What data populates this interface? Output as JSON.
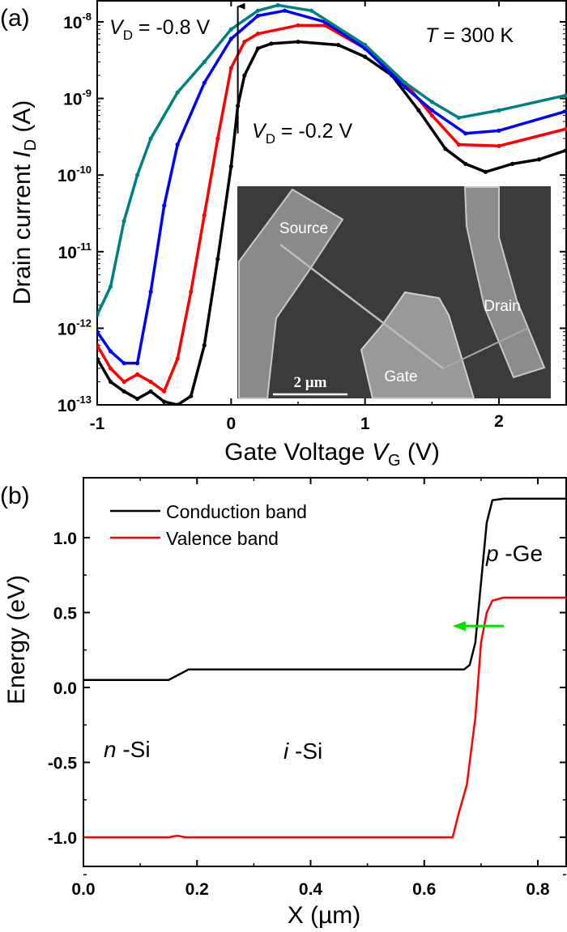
{
  "chart_data": [
    {
      "type": "scatter",
      "panel_label": "(a)",
      "xlabel_parts": [
        {
          "text": "Gate Voltage "
        },
        {
          "text": "V",
          "style": "italic"
        },
        {
          "text": "G",
          "style": "sub"
        },
        {
          "text": " (V)"
        }
      ],
      "ylabel_parts": [
        {
          "text": "Drain current "
        },
        {
          "text": "I",
          "style": "italic"
        },
        {
          "text": "D",
          "style": "sub"
        },
        {
          "text": " (A)"
        }
      ],
      "xlim": [
        -1,
        2.5
      ],
      "ylim": [
        1e-13,
        1.9e-08
      ],
      "yscale": "log",
      "x_ticks": [
        {
          "value": -1,
          "label": "-1"
        },
        {
          "value": 0,
          "label": "0"
        },
        {
          "value": 1,
          "label": "1"
        },
        {
          "value": 2,
          "label": "2"
        }
      ],
      "y_ticks": [
        {
          "value": 1e-08,
          "base": "10",
          "exp": "-8"
        },
        {
          "value": 1e-09,
          "base": "10",
          "exp": "-9"
        },
        {
          "value": 1e-10,
          "base": "10",
          "exp": "-10"
        },
        {
          "value": 1e-11,
          "base": "10",
          "exp": "-11"
        },
        {
          "value": 1e-12,
          "base": "10",
          "exp": "-12"
        },
        {
          "value": 1e-13,
          "base": "10",
          "exp": "-13"
        }
      ],
      "grid": false,
      "series": [
        {
          "color": "#000000",
          "points": [
            [
              -1,
              4e-13
            ],
            [
              -0.9,
              2e-13
            ],
            [
              -0.8,
              1.5e-13
            ],
            [
              -0.7,
              1.2e-13
            ],
            [
              -0.6,
              1.5e-13
            ],
            [
              -0.5,
              1.1e-13
            ],
            [
              -0.4,
              1e-13
            ],
            [
              -0.3,
              1.3e-13
            ],
            [
              -0.2,
              6e-13
            ],
            [
              -0.1,
              8e-12
            ],
            [
              0,
              1.3e-10
            ],
            [
              0.05,
              8e-10
            ],
            [
              0.1,
              2e-09
            ],
            [
              0.2,
              4.5e-09
            ],
            [
              0.3,
              5.2e-09
            ],
            [
              0.5,
              5.5e-09
            ],
            [
              0.8,
              5e-09
            ],
            [
              1.0,
              3.5e-09
            ],
            [
              1.2,
              2e-09
            ],
            [
              1.4,
              7e-10
            ],
            [
              1.6,
              2.2e-10
            ],
            [
              1.75,
              1.4e-10
            ],
            [
              1.9,
              1.1e-10
            ],
            [
              2.1,
              1.4e-10
            ],
            [
              2.3,
              1.6e-10
            ],
            [
              2.5,
              2.1e-10
            ]
          ]
        },
        {
          "color": "#ff0000",
          "points": [
            [
              -1,
              6e-13
            ],
            [
              -0.9,
              3e-13
            ],
            [
              -0.8,
              2e-13
            ],
            [
              -0.7,
              2.5e-13
            ],
            [
              -0.6,
              2e-13
            ],
            [
              -0.5,
              1.5e-13
            ],
            [
              -0.4,
              4e-13
            ],
            [
              -0.3,
              3e-12
            ],
            [
              -0.2,
              3e-11
            ],
            [
              -0.1,
              3e-10
            ],
            [
              0,
              2.5e-09
            ],
            [
              0.1,
              5.5e-09
            ],
            [
              0.2,
              7e-09
            ],
            [
              0.5,
              9e-09
            ],
            [
              0.7,
              9e-09
            ],
            [
              1.0,
              4.5e-09
            ],
            [
              1.3,
              1.6e-09
            ],
            [
              1.5,
              6e-10
            ],
            [
              1.7,
              2.5e-10
            ],
            [
              2.0,
              2.4e-10
            ],
            [
              2.5,
              4e-10
            ]
          ]
        },
        {
          "color": "#0000ff",
          "points": [
            [
              -1,
              9e-13
            ],
            [
              -0.9,
              5e-13
            ],
            [
              -0.8,
              3.5e-13
            ],
            [
              -0.7,
              3.5e-13
            ],
            [
              -0.6,
              3e-12
            ],
            [
              -0.5,
              4e-11
            ],
            [
              -0.4,
              2.5e-10
            ],
            [
              -0.2,
              1.6e-09
            ],
            [
              0,
              6e-09
            ],
            [
              0.2,
              1.2e-08
            ],
            [
              0.4,
              1.4e-08
            ],
            [
              0.7,
              1e-08
            ],
            [
              1.0,
              4.5e-09
            ],
            [
              1.3,
              1.4e-09
            ],
            [
              1.5,
              7e-10
            ],
            [
              1.75,
              3.5e-10
            ],
            [
              2.0,
              3.8e-10
            ],
            [
              2.5,
              6.8e-10
            ]
          ]
        },
        {
          "color": "#008080",
          "points": [
            [
              -1,
              1.5e-12
            ],
            [
              -0.9,
              3.5e-12
            ],
            [
              -0.8,
              2.5e-11
            ],
            [
              -0.7,
              1e-10
            ],
            [
              -0.6,
              3e-10
            ],
            [
              -0.4,
              1.2e-09
            ],
            [
              -0.2,
              3e-09
            ],
            [
              0,
              8e-09
            ],
            [
              0.2,
              1.4e-08
            ],
            [
              0.35,
              1.65e-08
            ],
            [
              0.6,
              1.4e-08
            ],
            [
              1.0,
              5e-09
            ],
            [
              1.3,
              1.6e-09
            ],
            [
              1.5,
              9e-10
            ],
            [
              1.7,
              5.6e-10
            ],
            [
              2.0,
              7e-10
            ],
            [
              2.5,
              1.1e-09
            ]
          ]
        }
      ],
      "arrow": {
        "x": 0.05,
        "from": 3.5e-10,
        "to": 1.6e-08,
        "color": "#000000"
      },
      "annotations": {
        "vd_high": [
          {
            "text": "V",
            "style": "italic"
          },
          {
            "text": "D",
            "style": "sub"
          },
          {
            "text": " = -0.8 V"
          }
        ],
        "vd_low": [
          {
            "text": "V",
            "style": "italic"
          },
          {
            "text": "D",
            "style": "sub"
          },
          {
            "text": " = -0.2 V"
          }
        ],
        "temperature": [
          {
            "text": "T",
            "style": "italic"
          },
          {
            "text": " = 300 K"
          }
        ]
      },
      "inset": {
        "type": "SEM micrograph",
        "labels": {
          "source": "Source",
          "gate": "Gate",
          "drain": "Drain",
          "scale_bar": "2 µm"
        }
      }
    },
    {
      "type": "line",
      "panel_label": "(b)",
      "xlabel": "X (µm)",
      "ylabel": "Energy (eV)",
      "xlim": [
        0,
        0.85
      ],
      "ylim": [
        -1.2,
        1.4
      ],
      "x_ticks": [
        {
          "value": 0,
          "label": "0.0"
        },
        {
          "value": 0.2,
          "label": "0.2"
        },
        {
          "value": 0.4,
          "label": "0.4"
        },
        {
          "value": 0.6,
          "label": "0.6"
        },
        {
          "value": 0.8,
          "label": "0.8"
        }
      ],
      "y_ticks": [
        {
          "value": 1.0,
          "label": "1.0"
        },
        {
          "value": 0.5,
          "label": "0.5"
        },
        {
          "value": 0.0,
          "label": "0.0"
        },
        {
          "value": -0.5,
          "label": "-0.5"
        },
        {
          "value": -1.0,
          "label": "-1.0"
        }
      ],
      "grid": false,
      "legend_position": "top-left",
      "series": [
        {
          "name": "Conduction band",
          "color": "#000000",
          "points": [
            [
              0,
              0.05
            ],
            [
              0.15,
              0.05
            ],
            [
              0.17,
              0.09
            ],
            [
              0.185,
              0.12
            ],
            [
              0.67,
              0.12
            ],
            [
              0.68,
              0.15
            ],
            [
              0.69,
              0.3
            ],
            [
              0.7,
              0.7
            ],
            [
              0.71,
              1.1
            ],
            [
              0.72,
              1.25
            ],
            [
              0.74,
              1.26
            ],
            [
              0.85,
              1.26
            ]
          ]
        },
        {
          "name": "Valence band",
          "color": "#ff0000",
          "points": [
            [
              0,
              -1.0
            ],
            [
              0.15,
              -1.0
            ],
            [
              0.165,
              -0.99
            ],
            [
              0.18,
              -1.0
            ],
            [
              0.65,
              -1.0
            ],
            [
              0.66,
              -0.85
            ],
            [
              0.675,
              -0.65
            ],
            [
              0.69,
              -0.2
            ],
            [
              0.7,
              0.3
            ],
            [
              0.71,
              0.5
            ],
            [
              0.72,
              0.58
            ],
            [
              0.74,
              0.6
            ],
            [
              0.85,
              0.6
            ]
          ]
        }
      ],
      "arrow": {
        "y": 0.41,
        "from": 0.74,
        "to": 0.65,
        "color": "#00e000"
      },
      "region_labels": {
        "n_si": [
          {
            "text": "n",
            "style": "italic"
          },
          {
            "text": " -Si"
          }
        ],
        "i_si": [
          {
            "text": "i",
            "style": "italic"
          },
          {
            "text": " -Si"
          }
        ],
        "p_ge": [
          {
            "text": "p",
            "style": "italic"
          },
          {
            "text": " -Ge"
          }
        ]
      }
    }
  ]
}
